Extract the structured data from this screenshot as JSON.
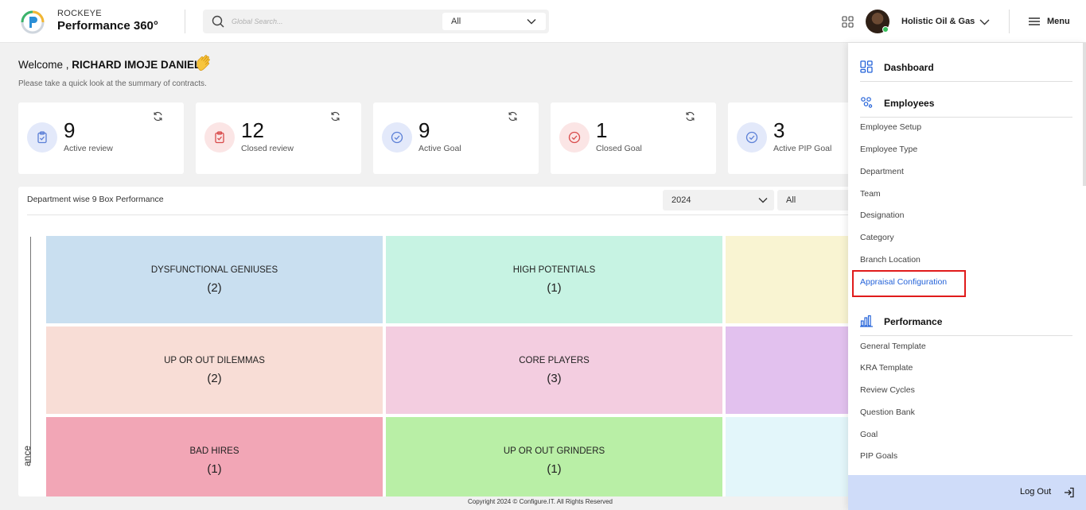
{
  "header": {
    "brand_top": "ROCKEYE",
    "brand_main": "Performance 360°",
    "search_placeholder": "Global Search...",
    "search_scope": "All",
    "company": "Holistic Oil & Gas",
    "menu_label": "Menu"
  },
  "welcome": {
    "prefix": "Welcome , ",
    "name": "RICHARD IMOJE DANIEL",
    "subtitle": "Please take a quick look at the summary of contracts."
  },
  "stats": [
    {
      "value": "9",
      "label": "Active review",
      "color": "#5b7fd6",
      "bg": "#e3e9fa",
      "icon": "clipboard-icon"
    },
    {
      "value": "12",
      "label": "Closed review",
      "color": "#d84a4a",
      "bg": "#fbe5e5",
      "icon": "clipboard-icon"
    },
    {
      "value": "9",
      "label": "Active Goal",
      "color": "#5b7fd6",
      "bg": "#e3e9fa",
      "icon": "check-circle-icon"
    },
    {
      "value": "1",
      "label": "Closed Goal",
      "color": "#d84a4a",
      "bg": "#fbe5e5",
      "icon": "check-circle-icon"
    },
    {
      "value": "3",
      "label": "Active PIP Goal",
      "color": "#5b7fd6",
      "bg": "#e3e9fa",
      "icon": "check-circle-icon"
    }
  ],
  "panel": {
    "title": "Department wise 9 Box Performance",
    "year": "2024",
    "department": "All",
    "axis_label": "ance"
  },
  "grid": [
    {
      "name": "DYSFUNCTIONAL GENIUSES",
      "count": "(2)",
      "color": "#c9dff0"
    },
    {
      "name": "HIGH POTENTIALS",
      "count": "(1)",
      "color": "#c7f3e3"
    },
    {
      "name": "",
      "count": "",
      "color": "#f9f4d2"
    },
    {
      "name": "UP OR OUT DILEMMAS",
      "count": "(2)",
      "color": "#f8ddd6"
    },
    {
      "name": "CORE PLAYERS",
      "count": "(3)",
      "color": "#f3cde0"
    },
    {
      "name": "",
      "count": "",
      "color": "#e2c1ee"
    },
    {
      "name": "BAD HIRES",
      "count": "(1)",
      "color": "#f2a6b6"
    },
    {
      "name": "UP OR OUT GRINDERS",
      "count": "(1)",
      "color": "#b9efa6"
    },
    {
      "name": "",
      "count": "",
      "color": "#e3f6fa"
    }
  ],
  "footer": "Copyright 2024 © Configure.IT. All Rights Reserved",
  "sidemenu": {
    "dashboard": "Dashboard",
    "employees": "Employees",
    "employee_items": [
      "Employee Setup",
      "Employee Type",
      "Department",
      "Team",
      "Designation",
      "Category",
      "Branch Location",
      "Appraisal Configuration"
    ],
    "performance": "Performance",
    "performance_items": [
      "General Template",
      "KRA Template",
      "Review Cycles",
      "Question Bank",
      "Goal",
      "PIP Goals"
    ],
    "logout": "Log Out",
    "accent": "#2563d9",
    "highlight": "#e01b1b"
  }
}
